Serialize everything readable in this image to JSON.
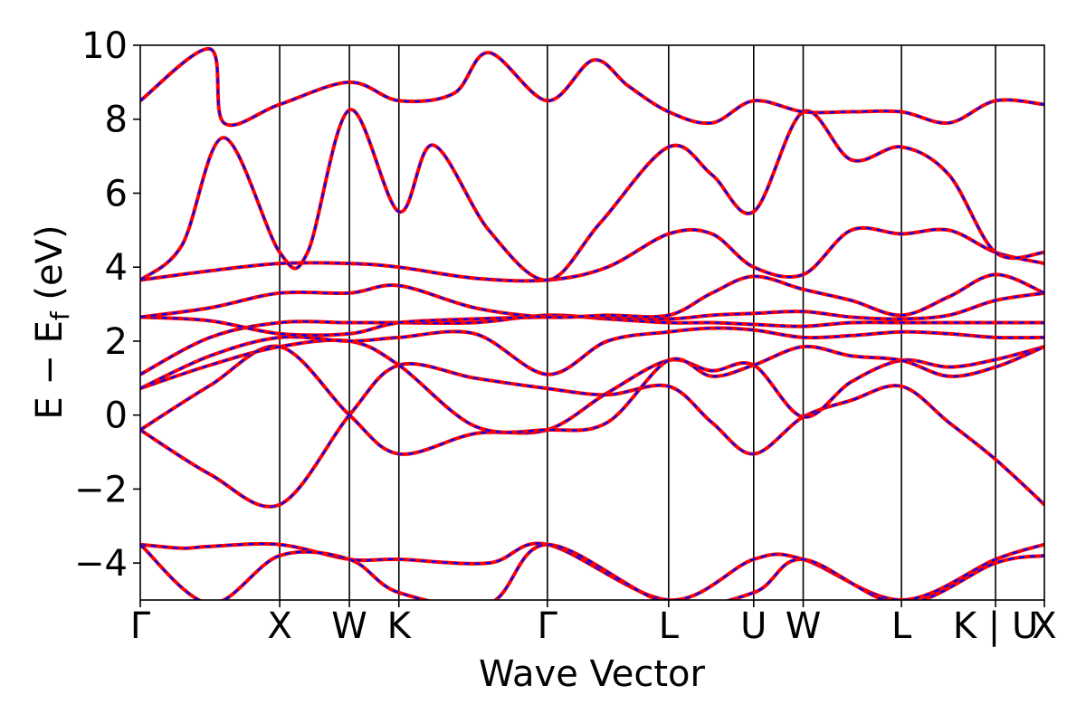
{
  "chart_data": {
    "type": "line",
    "xlabel": "Wave Vector",
    "ylabel": {
      "prefix": "E − E",
      "subscript": "f",
      "suffix": " (eV)"
    },
    "ylim": [
      -5,
      10
    ],
    "yticks": [
      {
        "value": -4,
        "label": "−4"
      },
      {
        "value": -2,
        "label": "−2"
      },
      {
        "value": 0,
        "label": "0"
      },
      {
        "value": 2,
        "label": "2"
      },
      {
        "value": 4,
        "label": "4"
      },
      {
        "value": 6,
        "label": "6"
      },
      {
        "value": 8,
        "label": "8"
      },
      {
        "value": 10,
        "label": "10"
      }
    ],
    "xlim": [
      0,
      12.97
    ],
    "kpoints": [
      {
        "label": "Γ",
        "x": 0
      },
      {
        "label": "X",
        "x": 2.0
      },
      {
        "label": "W",
        "x": 3.0
      },
      {
        "label": "K",
        "x": 3.71
      },
      {
        "label": "Γ",
        "x": 5.84
      },
      {
        "label": "L",
        "x": 7.58
      },
      {
        "label": "U",
        "x": 8.8
      },
      {
        "label": "W",
        "x": 9.51
      },
      {
        "label": "L",
        "x": 10.92
      },
      {
        "label": "K | U",
        "x": 12.27
      },
      {
        "label": "X",
        "x": 12.97
      }
    ],
    "grid": false,
    "line_colors": {
      "solid": "#ff0000",
      "dashed": "#0000ff"
    },
    "series": [
      {
        "x": [
          0,
          1.0,
          2.0,
          3.0,
          3.71,
          4.8,
          5.84,
          6.7,
          7.58,
          8.2,
          8.8,
          9.51,
          10.2,
          10.92,
          11.6,
          12.27,
          12.97
        ],
        "y": [
          -0.4,
          -1.6,
          -2.42,
          0.0,
          1.35,
          1.0,
          0.72,
          0.55,
          0.78,
          -0.2,
          -1.05,
          -0.05,
          0.4,
          0.78,
          -0.2,
          -1.2,
          -2.42
        ]
      },
      {
        "x": [
          0,
          1.0,
          2.0,
          3.0,
          3.71,
          4.8,
          5.84,
          6.7,
          7.58,
          8.2,
          8.8,
          9.51,
          10.2,
          10.92,
          11.6,
          12.27,
          12.97
        ],
        "y": [
          -0.4,
          0.8,
          1.85,
          0.0,
          -1.05,
          -0.5,
          -0.4,
          0.6,
          1.48,
          1.2,
          1.35,
          -0.05,
          0.9,
          1.48,
          1.3,
          1.5,
          1.85
        ]
      },
      {
        "x": [
          0,
          1.0,
          2.0,
          3.0,
          3.71,
          4.8,
          5.84,
          6.7,
          7.58,
          8.2,
          8.8,
          9.51,
          10.2,
          10.92,
          11.6,
          12.27,
          12.97
        ],
        "y": [
          0.72,
          1.35,
          1.85,
          2.0,
          1.35,
          -0.3,
          -0.4,
          -0.2,
          1.48,
          1.05,
          1.35,
          1.85,
          1.6,
          1.48,
          1.05,
          1.3,
          1.85
        ]
      },
      {
        "x": [
          0,
          1.0,
          2.0,
          3.0,
          3.71,
          4.8,
          5.84,
          6.7,
          7.58,
          8.2,
          8.8,
          9.51,
          10.2,
          10.92,
          11.6,
          12.27,
          12.97
        ],
        "y": [
          0.72,
          1.6,
          2.1,
          2.0,
          2.1,
          2.2,
          1.1,
          2.0,
          2.25,
          2.35,
          2.3,
          2.1,
          2.15,
          2.25,
          2.2,
          2.1,
          2.1
        ]
      },
      {
        "x": [
          0,
          1.0,
          2.0,
          3.0,
          3.71,
          4.8,
          5.84,
          6.7,
          7.58,
          8.2,
          8.8,
          9.51,
          10.2,
          10.92,
          11.6,
          12.27,
          12.97
        ],
        "y": [
          1.1,
          2.1,
          2.5,
          2.5,
          2.5,
          2.5,
          2.7,
          2.6,
          2.5,
          2.5,
          2.45,
          2.4,
          2.5,
          2.5,
          2.5,
          2.5,
          2.5
        ]
      },
      {
        "x": [
          0,
          1.0,
          2.0,
          3.0,
          3.71,
          4.8,
          5.84,
          6.7,
          7.58,
          8.2,
          8.8,
          9.51,
          10.2,
          10.92,
          11.6,
          12.27,
          12.97
        ],
        "y": [
          2.65,
          2.55,
          2.2,
          2.2,
          2.5,
          2.6,
          2.65,
          2.65,
          2.6,
          2.7,
          2.75,
          2.8,
          2.65,
          2.6,
          2.7,
          3.1,
          3.3
        ]
      },
      {
        "x": [
          0,
          1.0,
          2.0,
          3.0,
          3.71,
          4.8,
          5.84,
          6.7,
          7.58,
          8.2,
          8.8,
          9.51,
          10.2,
          10.92,
          11.6,
          12.27,
          12.97
        ],
        "y": [
          2.65,
          2.9,
          3.3,
          3.3,
          3.5,
          2.9,
          2.65,
          2.7,
          2.7,
          3.3,
          3.75,
          3.4,
          3.1,
          2.7,
          3.2,
          3.8,
          3.3
        ]
      },
      {
        "x": [
          0,
          1.0,
          2.0,
          3.0,
          3.71,
          4.8,
          5.84,
          6.7,
          7.58,
          8.2,
          8.8,
          9.51,
          10.2,
          10.92,
          11.6,
          12.27,
          12.97
        ],
        "y": [
          3.65,
          3.9,
          4.1,
          4.1,
          4.0,
          3.7,
          3.65,
          4.0,
          4.9,
          4.9,
          4.0,
          3.8,
          5.0,
          4.9,
          5.0,
          4.4,
          4.1
        ]
      },
      {
        "x": [
          0,
          0.6,
          1.2,
          2.0,
          2.4,
          3.0,
          3.71,
          4.2,
          5.0,
          5.84,
          6.6,
          7.58,
          8.2,
          8.8,
          9.51,
          10.2,
          10.92,
          11.6,
          12.27,
          12.97
        ],
        "y": [
          3.65,
          4.6,
          7.5,
          4.4,
          4.4,
          8.25,
          5.5,
          7.3,
          5.0,
          3.65,
          5.2,
          7.25,
          6.5,
          5.5,
          8.2,
          6.9,
          7.25,
          6.5,
          4.4,
          4.4
        ]
      },
      {
        "x": [
          0,
          1.0,
          1.2,
          2.0,
          3.0,
          3.71,
          4.5,
          5.0,
          5.84,
          6.5,
          7.0,
          7.58,
          8.2,
          8.8,
          9.51,
          10.2,
          10.92,
          11.6,
          12.27,
          12.97
        ],
        "y": [
          8.5,
          9.9,
          7.9,
          8.4,
          9.0,
          8.5,
          8.7,
          9.8,
          8.5,
          9.6,
          8.9,
          8.2,
          7.9,
          8.5,
          8.2,
          8.2,
          8.2,
          7.9,
          8.5,
          8.4
        ]
      },
      {
        "x": [
          0,
          0.6,
          1.0,
          2.0,
          3.0,
          3.71,
          5.0,
          5.84,
          7.58,
          8.8,
          9.51,
          10.92,
          12.27,
          12.97
        ],
        "y": [
          -3.5,
          -3.6,
          -3.55,
          -3.5,
          -3.9,
          -3.9,
          -4.0,
          -3.5,
          -5.0,
          -3.9,
          -3.9,
          -5.0,
          -3.9,
          -3.5
        ]
      },
      {
        "x": [
          0,
          1.0,
          2.0,
          3.0,
          3.71,
          5.0,
          5.84,
          7.58,
          8.8,
          9.51,
          10.92,
          12.27,
          12.97
        ],
        "y": [
          -3.5,
          -5.1,
          -3.8,
          -3.9,
          -4.8,
          -5.1,
          -3.5,
          -5.1,
          -4.8,
          -3.9,
          -5.1,
          -4.0,
          -3.8
        ]
      }
    ]
  }
}
